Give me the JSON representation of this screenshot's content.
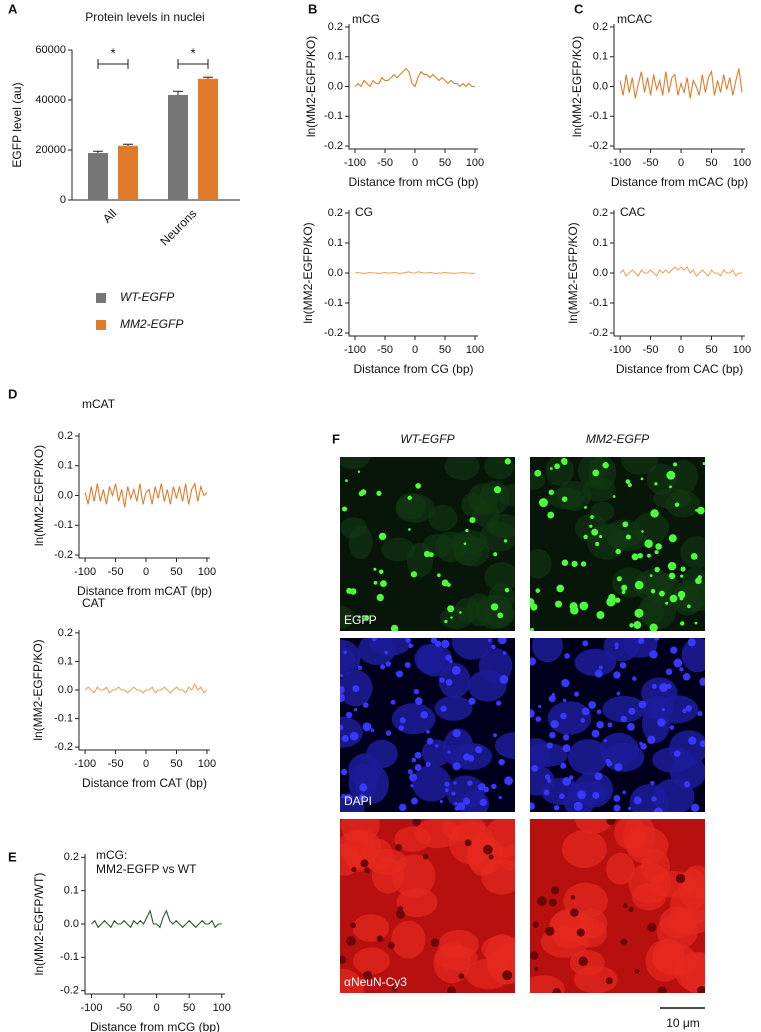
{
  "chart_data": [
    {
      "type": "bar",
      "panel": "A",
      "title": "Protein levels in nuclei",
      "y_label": "EGFP level (au)",
      "categories": [
        "All",
        "Neurons"
      ],
      "series": [
        {
          "name": "WT-EGFP",
          "color": "#767676",
          "values": [
            18800,
            42000
          ],
          "errors": [
            700,
            1500
          ]
        },
        {
          "name": "MM2-EGFP",
          "color": "#e07b29",
          "values": [
            21700,
            48500
          ],
          "errors": [
            600,
            600
          ]
        }
      ],
      "annotations": [
        "*",
        "*"
      ],
      "ylim": [
        0,
        60000
      ],
      "yticks": [
        0,
        20000,
        40000,
        60000
      ]
    },
    {
      "type": "line",
      "panel": "B",
      "label": "mCG",
      "x_label": "Distance from mCG (bp)",
      "y_label": "ln(MM2-EGFP/KO)",
      "x": [
        -100,
        -95,
        -90,
        -85,
        -80,
        -75,
        -70,
        -65,
        -60,
        -55,
        -50,
        -45,
        -40,
        -35,
        -30,
        -25,
        -20,
        -15,
        -10,
        -5,
        0,
        5,
        10,
        15,
        20,
        25,
        30,
        35,
        40,
        45,
        50,
        55,
        60,
        65,
        70,
        75,
        80,
        85,
        90,
        95,
        100
      ],
      "series": [
        {
          "color": "#e07b29",
          "values": [
            0.0,
            0.01,
            0.0,
            0.02,
            0.01,
            0.0,
            0.02,
            0.01,
            0.01,
            0.03,
            0.02,
            0.02,
            0.03,
            0.04,
            0.03,
            0.04,
            0.05,
            0.06,
            0.05,
            0.01,
            0.0,
            0.03,
            0.05,
            0.04,
            0.04,
            0.03,
            0.04,
            0.03,
            0.02,
            0.03,
            0.02,
            0.01,
            0.02,
            0.01,
            0.01,
            0.0,
            0.01,
            0.0,
            0.01,
            0.0,
            0.0
          ]
        }
      ],
      "xlim": [
        -110,
        105
      ],
      "xticks": [
        -100,
        -50,
        0,
        50,
        100
      ],
      "ylim": [
        -0.21,
        0.21
      ],
      "yticks": [
        -0.2,
        -0.1,
        {
          "value": 0,
          "label": "0.0"
        },
        0.1,
        0.2
      ]
    },
    {
      "type": "line",
      "label": "CG",
      "x_label": "Distance from CG (bp)",
      "y_label": "ln(MM2-EGFP/KO)",
      "x": [
        -100,
        -95,
        -90,
        -85,
        -80,
        -75,
        -70,
        -65,
        -60,
        -55,
        -50,
        -45,
        -40,
        -35,
        -30,
        -25,
        -20,
        -15,
        -10,
        -5,
        0,
        5,
        10,
        15,
        20,
        25,
        30,
        35,
        40,
        45,
        50,
        55,
        60,
        65,
        70,
        75,
        80,
        85,
        90,
        95,
        100
      ],
      "series": [
        {
          "color": "#eda35c",
          "values": [
            0.0,
            0.002,
            0.0,
            -0.002,
            0.0,
            0.002,
            0.0,
            0.0,
            -0.002,
            0.0,
            0.002,
            0.0,
            0.0,
            0.002,
            0.0,
            -0.002,
            0.0,
            0.002,
            0.004,
            0.0,
            0.0,
            0.004,
            0.002,
            0.0,
            0.0,
            0.002,
            0.0,
            -0.002,
            0.0,
            0.0,
            0.002,
            0.0,
            0.0,
            -0.002,
            0.0,
            0.0,
            0.002,
            0.0,
            0.0,
            -0.002,
            0.0
          ]
        }
      ],
      "xlim": [
        -110,
        105
      ],
      "xticks": [
        -100,
        -50,
        0,
        50,
        100
      ],
      "ylim": [
        -0.21,
        0.21
      ],
      "yticks": [
        -0.2,
        -0.1,
        {
          "value": 0,
          "label": "0.0"
        },
        0.1,
        0.2
      ]
    },
    {
      "type": "line",
      "panel": "C",
      "label": "mCAC",
      "x_label": "Distance from mCAC (bp)",
      "y_label": "ln(MM2-EGFP/KO)",
      "x": [
        -100,
        -95,
        -90,
        -85,
        -80,
        -75,
        -70,
        -65,
        -60,
        -55,
        -50,
        -45,
        -40,
        -35,
        -30,
        -25,
        -20,
        -15,
        -10,
        -5,
        0,
        5,
        10,
        15,
        20,
        25,
        30,
        35,
        40,
        45,
        50,
        55,
        60,
        65,
        70,
        75,
        80,
        85,
        90,
        95,
        100
      ],
      "series": [
        {
          "color": "#e07b29",
          "values": [
            0.02,
            -0.03,
            0.04,
            -0.02,
            0.03,
            -0.04,
            0.01,
            0.05,
            -0.02,
            0.03,
            -0.03,
            0.04,
            -0.01,
            0.02,
            -0.03,
            0.05,
            -0.02,
            0.03,
            0.04,
            -0.03,
            0.01,
            -0.02,
            0.03,
            -0.04,
            0.02,
            0.0,
            -0.03,
            0.04,
            -0.02,
            0.03,
            0.05,
            -0.03,
            0.02,
            -0.02,
            0.04,
            -0.01,
            0.03,
            -0.03,
            0.02,
            0.06,
            -0.02
          ]
        }
      ],
      "xlim": [
        -110,
        105
      ],
      "xticks": [
        -100,
        -50,
        0,
        50,
        100
      ],
      "ylim": [
        -0.21,
        0.21
      ],
      "yticks": [
        -0.2,
        -0.1,
        {
          "value": 0,
          "label": "0.0"
        },
        0.1,
        0.2
      ]
    },
    {
      "type": "line",
      "label": "CAC",
      "x_label": "Distance from CAC (bp)",
      "y_label": "ln(MM2-EGFP/KO)",
      "x": [
        -100,
        -95,
        -90,
        -85,
        -80,
        -75,
        -70,
        -65,
        -60,
        -55,
        -50,
        -45,
        -40,
        -35,
        -30,
        -25,
        -20,
        -15,
        -10,
        -5,
        0,
        5,
        10,
        15,
        20,
        25,
        30,
        35,
        40,
        45,
        50,
        55,
        60,
        65,
        70,
        75,
        80,
        85,
        90,
        95,
        100
      ],
      "series": [
        {
          "color": "#eda35c",
          "values": [
            0.0,
            0.01,
            -0.01,
            0.0,
            0.01,
            0.0,
            -0.01,
            0.01,
            0.0,
            0.0,
            0.01,
            0.0,
            -0.01,
            0.01,
            0.0,
            0.01,
            0.0,
            0.01,
            0.02,
            0.01,
            0.02,
            0.01,
            0.02,
            0.0,
            0.01,
            -0.01,
            0.0,
            0.01,
            0.0,
            -0.01,
            0.01,
            0.0,
            0.0,
            -0.01,
            0.01,
            0.0,
            0.0,
            0.01,
            -0.01,
            0.0,
            0.0
          ]
        }
      ],
      "xlim": [
        -110,
        105
      ],
      "xticks": [
        -100,
        -50,
        0,
        50,
        100
      ],
      "ylim": [
        -0.21,
        0.21
      ],
      "yticks": [
        -0.2,
        -0.1,
        {
          "value": 0,
          "label": "0.0"
        },
        0.1,
        0.2
      ]
    },
    {
      "type": "line",
      "panel": "D",
      "label": "mCAT",
      "x_label": "Distance from mCAT (bp)",
      "y_label": "ln(MM2-EGFP/KO)",
      "x": [
        -100,
        -95,
        -90,
        -85,
        -80,
        -75,
        -70,
        -65,
        -60,
        -55,
        -50,
        -45,
        -40,
        -35,
        -30,
        -25,
        -20,
        -15,
        -10,
        -5,
        0,
        5,
        10,
        15,
        20,
        25,
        30,
        35,
        40,
        45,
        50,
        55,
        60,
        65,
        70,
        75,
        80,
        85,
        90,
        95,
        100
      ],
      "series": [
        {
          "color": "#e07b29",
          "values": [
            0.01,
            -0.03,
            0.03,
            -0.02,
            0.04,
            -0.02,
            0.02,
            -0.03,
            0.03,
            0.0,
            0.04,
            -0.02,
            0.02,
            -0.04,
            0.03,
            -0.01,
            0.02,
            -0.02,
            0.04,
            -0.03,
            0.01,
            0.02,
            -0.03,
            0.03,
            -0.01,
            0.04,
            -0.02,
            0.02,
            -0.03,
            0.03,
            -0.01,
            0.03,
            -0.02,
            0.04,
            -0.03,
            0.02,
            0.04,
            -0.02,
            0.03,
            0.0,
            0.01
          ]
        }
      ],
      "xlim": [
        -110,
        105
      ],
      "xticks": [
        -100,
        -50,
        0,
        50,
        100
      ],
      "ylim": [
        -0.21,
        0.21
      ],
      "yticks": [
        -0.2,
        -0.1,
        {
          "value": 0,
          "label": "0.0"
        },
        0.1,
        0.2
      ]
    },
    {
      "type": "line",
      "label": "CAT",
      "x_label": "Distance from CAT (bp)",
      "y_label": "ln(MM2-EGFP/KO)",
      "x": [
        -100,
        -95,
        -90,
        -85,
        -80,
        -75,
        -70,
        -65,
        -60,
        -55,
        -50,
        -45,
        -40,
        -35,
        -30,
        -25,
        -20,
        -15,
        -10,
        -5,
        0,
        5,
        10,
        15,
        20,
        25,
        30,
        35,
        40,
        45,
        50,
        55,
        60,
        65,
        70,
        75,
        80,
        85,
        90,
        95,
        100
      ],
      "series": [
        {
          "color": "#eda35c",
          "values": [
            0.0,
            0.01,
            0.0,
            -0.01,
            0.01,
            0.0,
            0.0,
            0.01,
            -0.01,
            0.0,
            0.0,
            0.01,
            0.0,
            0.0,
            -0.01,
            0.0,
            0.01,
            0.0,
            0.0,
            -0.01,
            0.0,
            0.0,
            0.01,
            -0.01,
            0.0,
            0.0,
            0.01,
            0.0,
            -0.01,
            0.0,
            0.01,
            0.0,
            0.0,
            -0.01,
            0.01,
            0.0,
            0.02,
            0.0,
            0.01,
            -0.01,
            0.0
          ]
        }
      ],
      "xlim": [
        -110,
        105
      ],
      "xticks": [
        -100,
        -50,
        0,
        50,
        100
      ],
      "ylim": [
        -0.21,
        0.21
      ],
      "yticks": [
        -0.2,
        -0.1,
        {
          "value": 0,
          "label": "0.0"
        },
        0.1,
        0.2
      ]
    },
    {
      "type": "line",
      "panel": "E",
      "label": [
        "mCG:",
        "MM2-EGFP vs WT"
      ],
      "x_label": "Distance from mCG (bp)",
      "y_label": "ln(MM2-EGFP/WT)",
      "x": [
        -100,
        -95,
        -90,
        -85,
        -80,
        -75,
        -70,
        -65,
        -60,
        -55,
        -50,
        -45,
        -40,
        -35,
        -30,
        -25,
        -20,
        -15,
        -10,
        -5,
        0,
        5,
        10,
        15,
        20,
        25,
        30,
        35,
        40,
        45,
        50,
        55,
        60,
        65,
        70,
        75,
        80,
        85,
        90,
        95,
        100
      ],
      "series": [
        {
          "color": "#2d5a2d",
          "values": [
            0.0,
            0.01,
            -0.01,
            0.0,
            0.01,
            0.0,
            -0.01,
            0.01,
            0.0,
            0.0,
            0.01,
            0.0,
            -0.01,
            0.01,
            0.0,
            0.01,
            0.0,
            0.02,
            0.04,
            0.0,
            0.0,
            -0.01,
            0.02,
            0.04,
            0.01,
            0.0,
            0.01,
            0.0,
            -0.01,
            0.0,
            0.01,
            0.0,
            -0.01,
            0.0,
            0.01,
            0.0,
            0.0,
            0.01,
            -0.01,
            0.0,
            0.0
          ]
        }
      ],
      "xlim": [
        -110,
        105
      ],
      "xticks": [
        -100,
        -50,
        0,
        50,
        100
      ],
      "ylim": [
        -0.21,
        0.21
      ],
      "yticks": [
        -0.2,
        -0.1,
        {
          "value": 0,
          "label": "0.0"
        },
        0.1,
        0.2
      ]
    }
  ],
  "figure_f": {
    "panel": "F",
    "columns": [
      "WT-EGFP",
      "MM2-EGFP"
    ],
    "rows": [
      "EGFP",
      "DAPI",
      "αNeuN-Cy3"
    ],
    "scale_bar": "10 μm"
  }
}
